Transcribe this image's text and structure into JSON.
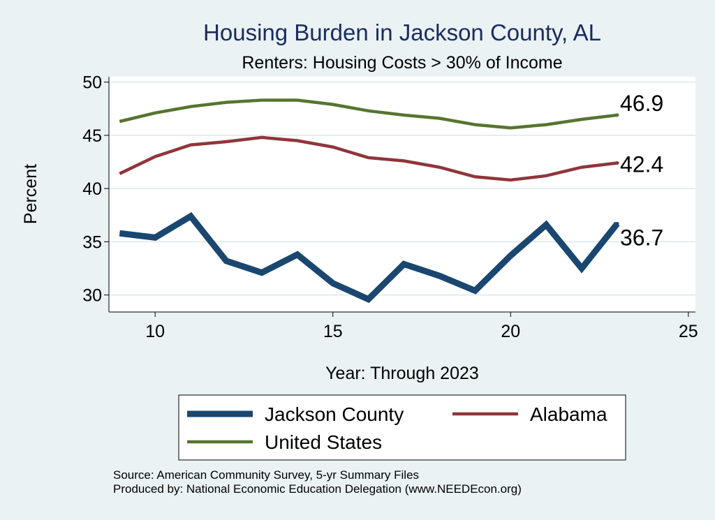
{
  "chart_data": {
    "type": "line",
    "title": "Housing Burden in Jackson County, AL",
    "subtitle": "Renters: Housing Costs > 30% of Income",
    "xlabel": "Year: Through 2023",
    "ylabel": "Percent",
    "xlim": [
      8.7,
      25.2
    ],
    "ylim": [
      28.4,
      50.5
    ],
    "xticks": [
      10,
      15,
      20,
      25
    ],
    "yticks": [
      30,
      35,
      40,
      45,
      50
    ],
    "grid": true,
    "legend_position": "bottom",
    "x": [
      9,
      10,
      11,
      12,
      13,
      14,
      15,
      16,
      17,
      18,
      19,
      20,
      21,
      22,
      23
    ],
    "series": [
      {
        "name": "Jackson County",
        "color": "#1a476f",
        "values": [
          35.8,
          35.4,
          37.4,
          33.2,
          32.1,
          33.8,
          31.1,
          29.6,
          32.9,
          31.8,
          30.4,
          33.7,
          36.6,
          32.5,
          36.7
        ],
        "end_label": "36.7"
      },
      {
        "name": "Alabama",
        "color": "#90353b",
        "values": [
          41.4,
          43.0,
          44.1,
          44.4,
          44.8,
          44.5,
          43.9,
          42.9,
          42.6,
          42.0,
          41.1,
          40.8,
          41.2,
          42.0,
          42.4
        ],
        "end_label": "42.4"
      },
      {
        "name": "United States",
        "color": "#55752f",
        "values": [
          46.3,
          47.1,
          47.7,
          48.1,
          48.3,
          48.3,
          47.9,
          47.3,
          46.9,
          46.6,
          46.0,
          45.7,
          46.0,
          46.5,
          46.9
        ],
        "end_label": "46.9"
      }
    ]
  },
  "source_lines": [
    "Source: American Community Survey, 5-yr Summary Files",
    "Produced by: National Economic Education Delegation (www.NEEDEcon.org)"
  ]
}
